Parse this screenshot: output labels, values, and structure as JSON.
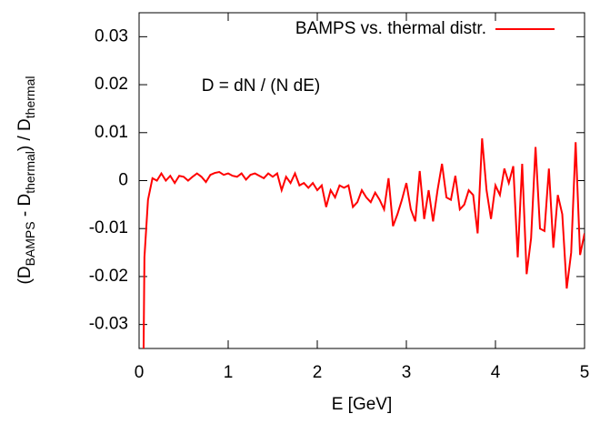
{
  "chart_data": {
    "type": "line",
    "xlabel": "E [GeV]",
    "ylabel": [
      "(D",
      "BAMPS",
      " - D",
      "thermal",
      ") / D",
      "thermal"
    ],
    "annotation": "D = dN / (N dE)",
    "legend": "top-right",
    "xlim": [
      0,
      5
    ],
    "xticks": [
      0,
      1,
      2,
      3,
      4,
      5
    ],
    "ylim": [
      -0.035,
      0.035
    ],
    "yticks": [
      -0.03,
      -0.02,
      -0.01,
      0,
      0.01,
      0.02,
      0.03
    ],
    "x": [
      0.05,
      0.06,
      0.1,
      0.15,
      0.2,
      0.25,
      0.3,
      0.35,
      0.4,
      0.45,
      0.5,
      0.55,
      0.6,
      0.65,
      0.7,
      0.75,
      0.8,
      0.85,
      0.9,
      0.95,
      1.0,
      1.05,
      1.1,
      1.15,
      1.2,
      1.25,
      1.3,
      1.35,
      1.4,
      1.45,
      1.5,
      1.55,
      1.6,
      1.65,
      1.7,
      1.75,
      1.8,
      1.85,
      1.9,
      1.95,
      2.0,
      2.05,
      2.1,
      2.15,
      2.2,
      2.25,
      2.3,
      2.35,
      2.4,
      2.45,
      2.5,
      2.55,
      2.6,
      2.65,
      2.7,
      2.75,
      2.8,
      2.85,
      2.9,
      2.95,
      3.0,
      3.05,
      3.1,
      3.15,
      3.2,
      3.25,
      3.3,
      3.35,
      3.4,
      3.45,
      3.5,
      3.55,
      3.6,
      3.65,
      3.7,
      3.75,
      3.8,
      3.85,
      3.9,
      3.95,
      4.0,
      4.05,
      4.1,
      4.15,
      4.2,
      4.25,
      4.3,
      4.35,
      4.4,
      4.45,
      4.5,
      4.55,
      4.6,
      4.65,
      4.7,
      4.75,
      4.8,
      4.85,
      4.9,
      4.95,
      5.0
    ],
    "series": [
      {
        "name": "BAMPS vs. thermal distr.",
        "color": "#ff0000",
        "values": [
          -0.036,
          -0.016,
          -0.004,
          0.0005,
          0.0,
          0.0015,
          0.0,
          0.001,
          -0.0005,
          0.001,
          0.0008,
          0.0,
          0.0008,
          0.0015,
          0.0008,
          -0.0003,
          0.0012,
          0.0016,
          0.0018,
          0.0012,
          0.0015,
          0.001,
          0.0008,
          0.0015,
          0.0002,
          0.0012,
          0.0015,
          0.001,
          0.0005,
          0.0015,
          0.0008,
          0.0015,
          -0.002,
          0.0008,
          -0.0005,
          0.0015,
          -0.001,
          -0.0005,
          -0.0015,
          -0.0005,
          -0.002,
          -0.001,
          -0.0055,
          -0.002,
          -0.0035,
          -0.001,
          -0.0015,
          -0.001,
          -0.0055,
          -0.0045,
          -0.002,
          -0.0035,
          -0.0045,
          -0.0025,
          -0.004,
          -0.006,
          0.0005,
          -0.0095,
          -0.007,
          -0.004,
          -0.0005,
          -0.006,
          -0.0085,
          0.002,
          -0.008,
          -0.002,
          -0.0085,
          -0.002,
          0.0035,
          -0.0035,
          -0.004,
          0.001,
          -0.006,
          -0.005,
          -0.002,
          -0.003,
          -0.011,
          0.0088,
          -0.002,
          -0.008,
          -0.001,
          -0.003,
          0.0025,
          -0.0005,
          0.003,
          -0.016,
          0.0035,
          -0.0195,
          -0.012,
          0.007,
          -0.01,
          -0.0105,
          0.0025,
          -0.014,
          -0.003,
          -0.007,
          -0.0225,
          -0.015,
          0.008,
          -0.0155,
          -0.011
        ]
      }
    ]
  }
}
